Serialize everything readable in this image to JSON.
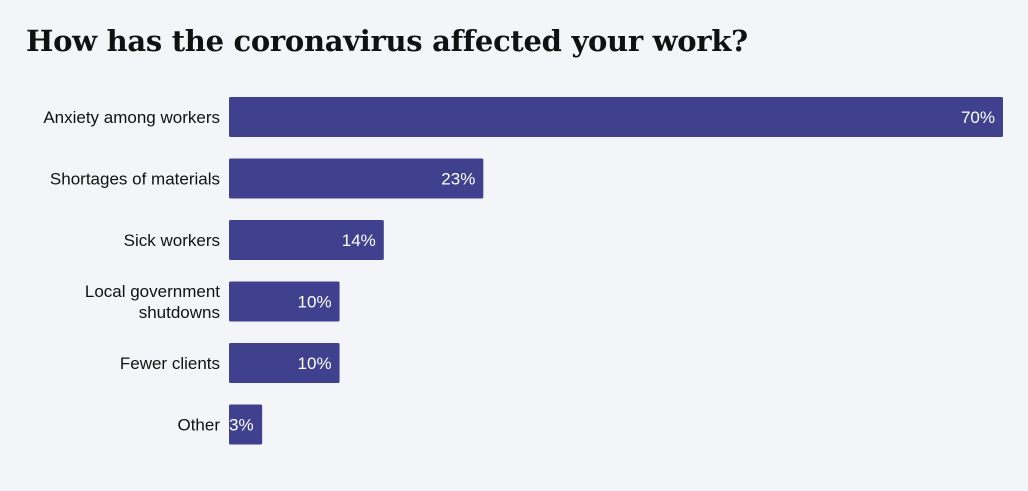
{
  "chart_data": {
    "type": "bar",
    "orientation": "horizontal",
    "title": "How has the coronavirus affected your work?",
    "categories": [
      [
        "Anxiety among workers"
      ],
      [
        "Shortages of materials"
      ],
      [
        "Sick workers"
      ],
      [
        "Local government",
        "shutdowns"
      ],
      [
        "Fewer clients"
      ],
      [
        "Other"
      ]
    ],
    "values": [
      70,
      23,
      14,
      10,
      10,
      3
    ],
    "value_labels": [
      "70%",
      "23%",
      "14%",
      "10%",
      "10%",
      "3%"
    ],
    "xlim": [
      0,
      70
    ],
    "grid": false,
    "legend": "none",
    "bar_color": "#3f418f",
    "value_label_color": "#ffffff"
  }
}
